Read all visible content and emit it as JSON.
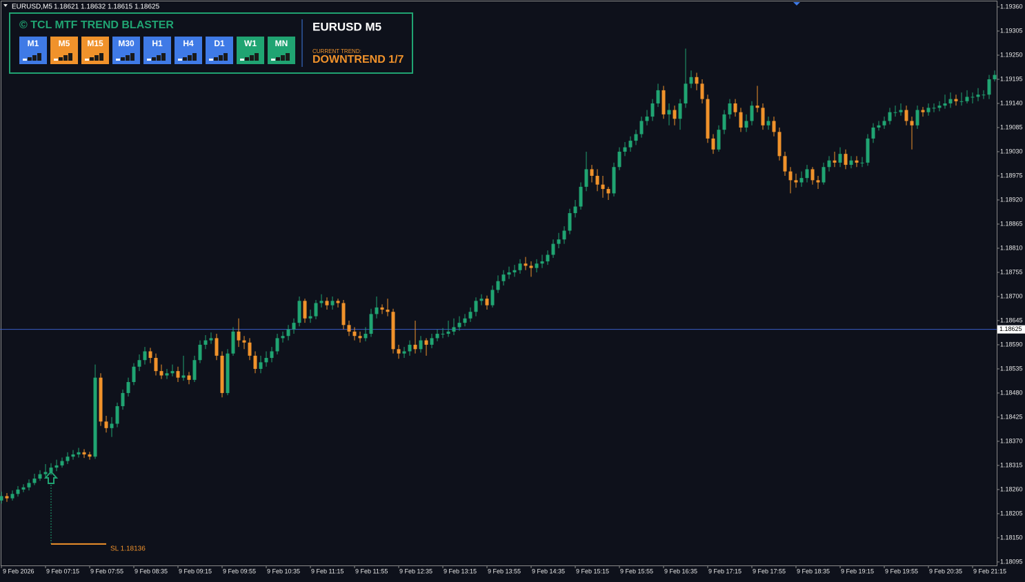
{
  "chart_data": {
    "type": "candlestick",
    "quote": {
      "symbol": "EURUSD,M5",
      "open": 1.18621,
      "high": 1.18632,
      "low": 1.18615,
      "close": 1.18625
    },
    "categories": [
      "9 Feb 2026",
      null,
      null,
      null,
      null,
      null,
      null,
      null,
      "9 Feb 07:15",
      null,
      null,
      null,
      null,
      null,
      null,
      null,
      "9 Feb 07:55",
      null,
      null,
      null,
      null,
      null,
      null,
      null,
      "9 Feb 08:35",
      null,
      null,
      null,
      null,
      null,
      null,
      null,
      "9 Feb 09:15",
      null,
      null,
      null,
      null,
      null,
      null,
      null,
      "9 Feb 09:55",
      null,
      null,
      null,
      null,
      null,
      null,
      null,
      "9 Feb 10:35",
      null,
      null,
      null,
      null,
      null,
      null,
      null,
      "9 Feb 11:15",
      null,
      null,
      null,
      null,
      null,
      null,
      null,
      "9 Feb 11:55",
      null,
      null,
      null,
      null,
      null,
      null,
      null,
      "9 Feb 12:35",
      null,
      null,
      null,
      null,
      null,
      null,
      null,
      "9 Feb 13:15",
      null,
      null,
      null,
      null,
      null,
      null,
      null,
      "9 Feb 13:55",
      null,
      null,
      null,
      null,
      null,
      null,
      null,
      "9 Feb 14:35",
      null,
      null,
      null,
      null,
      null,
      null,
      null,
      "9 Feb 15:15",
      null,
      null,
      null,
      null,
      null,
      null,
      null,
      "9 Feb 15:55",
      null,
      null,
      null,
      null,
      null,
      null,
      null,
      "9 Feb 16:35",
      null,
      null,
      null,
      null,
      null,
      null,
      null,
      "9 Feb 17:15",
      null,
      null,
      null,
      null,
      null,
      null,
      null,
      "9 Feb 17:55",
      null,
      null,
      null,
      null,
      null,
      null,
      null,
      "9 Feb 18:35",
      null,
      null,
      null,
      null,
      null,
      null,
      null,
      "9 Feb 19:15",
      null,
      null,
      null,
      null,
      null,
      null,
      null,
      "9 Feb 19:55",
      null,
      null,
      null,
      null,
      null,
      null,
      null,
      "9 Feb 20:35",
      null,
      null,
      null,
      null,
      null,
      null,
      null,
      "9 Feb 21:15",
      null,
      null,
      null,
      null
    ],
    "open": [
      1.18235,
      1.18245,
      1.1824,
      1.1825,
      1.1826,
      1.18265,
      1.18275,
      1.18285,
      1.18295,
      1.183,
      1.1831,
      1.18315,
      1.18325,
      1.18335,
      1.1834,
      1.18345,
      1.1834,
      1.18335,
      1.18515,
      1.18415,
      1.184,
      1.1841,
      1.1845,
      1.1848,
      1.18505,
      1.1854,
      1.18555,
      1.18575,
      1.1856,
      1.1853,
      1.1852,
      1.18525,
      1.1853,
      1.18515,
      1.1852,
      1.1851,
      1.18555,
      1.1859,
      1.186,
      1.18605,
      1.18565,
      1.1848,
      1.1857,
      1.1862,
      1.186,
      1.18595,
      1.18565,
      1.18535,
      1.1855,
      1.1856,
      1.18575,
      1.18605,
      1.1861,
      1.18625,
      1.1864,
      1.1869,
      1.1865,
      1.18655,
      1.18685,
      1.1869,
      1.1868,
      1.1869,
      1.18685,
      1.18635,
      1.1862,
      1.1861,
      1.18605,
      1.18615,
      1.1866,
      1.18675,
      1.1867,
      1.18665,
      1.1858,
      1.1857,
      1.18575,
      1.1859,
      1.1858,
      1.186,
      1.1859,
      1.18605,
      1.18615,
      1.18615,
      1.1862,
      1.1863,
      1.1864,
      1.1865,
      1.18665,
      1.1869,
      1.18695,
      1.1868,
      1.18715,
      1.18735,
      1.1875,
      1.18755,
      1.1876,
      1.18775,
      1.1877,
      1.18765,
      1.18775,
      1.1878,
      1.18795,
      1.1882,
      1.1883,
      1.1885,
      1.1889,
      1.18905,
      1.1895,
      1.1899,
      1.18975,
      1.18955,
      1.18945,
      1.18935,
      1.18995,
      1.1903,
      1.1904,
      1.19055,
      1.1907,
      1.191,
      1.1911,
      1.1914,
      1.1917,
      1.19115,
      1.19125,
      1.19105,
      1.1914,
      1.19185,
      1.192,
      1.19185,
      1.1915,
      1.1906,
      1.19035,
      1.1908,
      1.19115,
      1.1914,
      1.1912,
      1.19085,
      1.191,
      1.19135,
      1.1913,
      1.1909,
      1.191,
      1.19075,
      1.1902,
      1.18985,
      1.18965,
      1.1896,
      1.1897,
      1.1899,
      1.18965,
      1.1896,
      1.18995,
      1.1901,
      1.19005,
      1.19025,
      1.19,
      1.1901,
      1.19005,
      1.19005,
      1.1906,
      1.19085,
      1.1909,
      1.191,
      1.1912,
      1.1912,
      1.19125,
      1.191,
      1.1909,
      1.19125,
      1.1912,
      1.1913,
      1.1913,
      1.19135,
      1.1914,
      1.1915,
      1.19145,
      1.19145,
      1.19155,
      1.19155,
      1.1916,
      1.1916,
      1.19195
    ],
    "high": [
      1.18255,
      1.18252,
      1.18258,
      1.18268,
      1.18272,
      1.18283,
      1.18296,
      1.18304,
      1.18318,
      1.1832,
      1.18328,
      1.18333,
      1.18345,
      1.1835,
      1.18355,
      1.18352,
      1.18346,
      1.18545,
      1.18525,
      1.18428,
      1.18425,
      1.18458,
      1.18488,
      1.18515,
      1.18548,
      1.18568,
      1.18585,
      1.18583,
      1.1857,
      1.18545,
      1.18535,
      1.18545,
      1.1854,
      1.18565,
      1.18528,
      1.18565,
      1.186,
      1.18612,
      1.18618,
      1.18615,
      1.18575,
      1.1858,
      1.1863,
      1.1865,
      1.1861,
      1.18605,
      1.18575,
      1.18565,
      1.18575,
      1.18585,
      1.18615,
      1.1862,
      1.18635,
      1.1865,
      1.187,
      1.18695,
      1.1867,
      1.18692,
      1.18705,
      1.18698,
      1.187,
      1.18695,
      1.18692,
      1.18645,
      1.1863,
      1.1862,
      1.1863,
      1.18672,
      1.187,
      1.18682,
      1.18695,
      1.18672,
      1.1859,
      1.18585,
      1.186,
      1.18645,
      1.1861,
      1.18605,
      1.18615,
      1.18625,
      1.18628,
      1.18645,
      1.1865,
      1.18655,
      1.1866,
      1.18675,
      1.18698,
      1.18705,
      1.18702,
      1.18725,
      1.18748,
      1.1876,
      1.18768,
      1.18772,
      1.18785,
      1.1879,
      1.1878,
      1.18785,
      1.18795,
      1.18805,
      1.1883,
      1.18845,
      1.1886,
      1.189,
      1.1892,
      1.1896,
      1.1903,
      1.19,
      1.1899,
      1.18975,
      1.1895,
      1.19005,
      1.1904,
      1.19052,
      1.19065,
      1.1908,
      1.1911,
      1.19125,
      1.1915,
      1.19185,
      1.1918,
      1.1914,
      1.19135,
      1.1915,
      1.19265,
      1.19215,
      1.1921,
      1.19195,
      1.1916,
      1.1907,
      1.1909,
      1.19125,
      1.1915,
      1.1915,
      1.1913,
      1.19115,
      1.19145,
      1.1918,
      1.1914,
      1.1911,
      1.1911,
      1.19085,
      1.1903,
      1.18995,
      1.1898,
      1.18985,
      1.19,
      1.18995,
      1.18975,
      1.19005,
      1.1902,
      1.1903,
      1.1904,
      1.19035,
      1.1902,
      1.1902,
      1.19018,
      1.1907,
      1.19095,
      1.191,
      1.1911,
      1.1913,
      1.19135,
      1.1914,
      1.19135,
      1.1911,
      1.19135,
      1.19132,
      1.1914,
      1.1914,
      1.19145,
      1.1916,
      1.19165,
      1.1916,
      1.19165,
      1.1917,
      1.19165,
      1.19175,
      1.1917,
      1.19205,
      1.19215
    ],
    "low": [
      1.18228,
      1.18232,
      1.18235,
      1.18244,
      1.18254,
      1.18258,
      1.1827,
      1.1828,
      1.18285,
      1.18293,
      1.18302,
      1.1831,
      1.18318,
      1.18328,
      1.18333,
      1.18332,
      1.18328,
      1.1833,
      1.18405,
      1.1839,
      1.1838,
      1.18402,
      1.18442,
      1.18472,
      1.18498,
      1.1853,
      1.18545,
      1.18548,
      1.1852,
      1.18512,
      1.18512,
      1.18518,
      1.18505,
      1.18508,
      1.185,
      1.18505,
      1.18548,
      1.1858,
      1.18592,
      1.18555,
      1.1847,
      1.18475,
      1.18565,
      1.18585,
      1.1858,
      1.18555,
      1.18525,
      1.18525,
      1.1854,
      1.1855,
      1.18568,
      1.18595,
      1.186,
      1.18615,
      1.18632,
      1.1864,
      1.1864,
      1.18648,
      1.18675,
      1.1867,
      1.1867,
      1.18675,
      1.18625,
      1.1861,
      1.186,
      1.18595,
      1.18598,
      1.18608,
      1.1865,
      1.1866,
      1.18655,
      1.1857,
      1.18558,
      1.1856,
      1.18565,
      1.1857,
      1.18572,
      1.18565,
      1.18582,
      1.18598,
      1.18605,
      1.18608,
      1.18612,
      1.18622,
      1.18632,
      1.18642,
      1.18655,
      1.1868,
      1.1867,
      1.18675,
      1.18708,
      1.18725,
      1.1874,
      1.18745,
      1.18752,
      1.1876,
      1.18745,
      1.18755,
      1.18765,
      1.18772,
      1.18788,
      1.1881,
      1.1882,
      1.18842,
      1.1888,
      1.18898,
      1.1894,
      1.1896,
      1.1894,
      1.18925,
      1.1892,
      1.18928,
      1.18988,
      1.1902,
      1.1903,
      1.19045,
      1.19062,
      1.1909,
      1.191,
      1.19132,
      1.19105,
      1.1909,
      1.1909,
      1.1908,
      1.1913,
      1.19175,
      1.1917,
      1.1914,
      1.1905,
      1.19025,
      1.1903,
      1.1907,
      1.19105,
      1.1911,
      1.19075,
      1.19075,
      1.1909,
      1.1912,
      1.1908,
      1.1908,
      1.19065,
      1.1901,
      1.18975,
      1.18935,
      1.18948,
      1.1895,
      1.1896,
      1.18955,
      1.18945,
      1.18955,
      1.18985,
      1.18995,
      1.18995,
      1.1899,
      1.18992,
      1.18995,
      1.18995,
      1.18998,
      1.1905,
      1.19078,
      1.19082,
      1.19092,
      1.1911,
      1.19112,
      1.1909,
      1.19035,
      1.19082,
      1.1911,
      1.19112,
      1.1912,
      1.19122,
      1.19128,
      1.1913,
      1.19135,
      1.19135,
      1.1914,
      1.1914,
      1.19145,
      1.1915,
      1.1915,
      1.1919
    ],
    "close": [
      1.18245,
      1.1824,
      1.1825,
      1.1826,
      1.18265,
      1.18275,
      1.18285,
      1.18295,
      1.183,
      1.1831,
      1.18315,
      1.18325,
      1.18335,
      1.1834,
      1.18345,
      1.1834,
      1.18335,
      1.18515,
      1.18415,
      1.184,
      1.1841,
      1.1845,
      1.1848,
      1.18505,
      1.1854,
      1.18555,
      1.18575,
      1.1856,
      1.1853,
      1.1852,
      1.18525,
      1.1853,
      1.18515,
      1.1852,
      1.1851,
      1.18555,
      1.1859,
      1.186,
      1.18605,
      1.18565,
      1.1848,
      1.1857,
      1.1862,
      1.186,
      1.18595,
      1.18565,
      1.18535,
      1.1855,
      1.1856,
      1.18575,
      1.18605,
      1.1861,
      1.18625,
      1.1864,
      1.1869,
      1.1865,
      1.18655,
      1.18685,
      1.1869,
      1.1868,
      1.1869,
      1.18685,
      1.18635,
      1.1862,
      1.1861,
      1.18605,
      1.18615,
      1.1866,
      1.18675,
      1.1867,
      1.18665,
      1.1858,
      1.1857,
      1.18575,
      1.1859,
      1.1858,
      1.186,
      1.1859,
      1.18605,
      1.18615,
      1.18615,
      1.1862,
      1.1863,
      1.1864,
      1.1865,
      1.18665,
      1.1869,
      1.18695,
      1.1868,
      1.18715,
      1.18735,
      1.1875,
      1.18755,
      1.1876,
      1.18775,
      1.1877,
      1.18765,
      1.18775,
      1.1878,
      1.18795,
      1.1882,
      1.1883,
      1.1885,
      1.1889,
      1.18905,
      1.1895,
      1.1899,
      1.18975,
      1.18955,
      1.18945,
      1.18935,
      1.18995,
      1.1903,
      1.1904,
      1.19055,
      1.1907,
      1.191,
      1.1911,
      1.1914,
      1.1917,
      1.19115,
      1.19125,
      1.19105,
      1.1914,
      1.19185,
      1.192,
      1.19185,
      1.1915,
      1.1906,
      1.19035,
      1.1908,
      1.19115,
      1.1914,
      1.1912,
      1.19085,
      1.191,
      1.19135,
      1.1913,
      1.1909,
      1.191,
      1.19075,
      1.1902,
      1.18985,
      1.18965,
      1.1896,
      1.1897,
      1.1899,
      1.18965,
      1.1896,
      1.18995,
      1.1901,
      1.19005,
      1.19025,
      1.19,
      1.1901,
      1.19005,
      1.19005,
      1.1906,
      1.19085,
      1.1909,
      1.191,
      1.1912,
      1.1912,
      1.19125,
      1.191,
      1.1909,
      1.19125,
      1.1912,
      1.1913,
      1.1913,
      1.19135,
      1.1914,
      1.1915,
      1.19145,
      1.19145,
      1.19155,
      1.19155,
      1.1916,
      1.1916,
      1.19195,
      1.19205
    ],
    "up_color": "#20a472",
    "down_color": "#f0922b",
    "ylim": [
      1.18087,
      1.19371
    ],
    "yticks": [
      {
        "value": 1.1936,
        "label": "1.19360"
      },
      {
        "value": 1.19305,
        "label": "1.19305"
      },
      {
        "value": 1.1925,
        "label": "1.19250"
      },
      {
        "value": 1.19195,
        "label": "1.19195"
      },
      {
        "value": 1.1914,
        "label": "1.19140"
      },
      {
        "value": 1.19085,
        "label": "1.19085"
      },
      {
        "value": 1.1903,
        "label": "1.19030"
      },
      {
        "value": 1.18975,
        "label": "1.18975"
      },
      {
        "value": 1.1892,
        "label": "1.18920"
      },
      {
        "value": 1.18865,
        "label": "1.18865"
      },
      {
        "value": 1.1881,
        "label": "1.18810"
      },
      {
        "value": 1.18755,
        "label": "1.18755"
      },
      {
        "value": 1.187,
        "label": "1.18700"
      },
      {
        "value": 1.18645,
        "label": "1.18645"
      },
      {
        "value": 1.1859,
        "label": "1.18590"
      },
      {
        "value": 1.18535,
        "label": "1.18535"
      },
      {
        "value": 1.1848,
        "label": "1.18480"
      },
      {
        "value": 1.18425,
        "label": "1.18425"
      },
      {
        "value": 1.1837,
        "label": "1.18370"
      },
      {
        "value": 1.18315,
        "label": "1.18315"
      },
      {
        "value": 1.1826,
        "label": "1.18260"
      },
      {
        "value": 1.18205,
        "label": "1.18205"
      },
      {
        "value": 1.1815,
        "label": "1.18150"
      },
      {
        "value": 1.18095,
        "label": "1.18095"
      }
    ],
    "grid": false,
    "price_line": {
      "value": 1.18625,
      "color": "#3a5ec8"
    },
    "stop_loss": {
      "label": "SL 1.18136",
      "value": 1.18136,
      "color": "#f0922b"
    }
  },
  "indicator_panel": {
    "title": "© TCL MTF TREND BLASTER",
    "timeframes": [
      {
        "label": "M1",
        "color": "#3f7ae6"
      },
      {
        "label": "M5",
        "color": "#f0922b"
      },
      {
        "label": "M15",
        "color": "#f0922b"
      },
      {
        "label": "M30",
        "color": "#3f7ae6"
      },
      {
        "label": "H1",
        "color": "#3f7ae6"
      },
      {
        "label": "H4",
        "color": "#3f7ae6"
      },
      {
        "label": "D1",
        "color": "#3f7ae6"
      },
      {
        "label": "W1",
        "color": "#20a472"
      },
      {
        "label": "MN",
        "color": "#20a472"
      }
    ],
    "symbol": "EURUSD M5",
    "trend_caption": "CURRENT TREND:",
    "trend": "DOWNTREND 1/7"
  }
}
